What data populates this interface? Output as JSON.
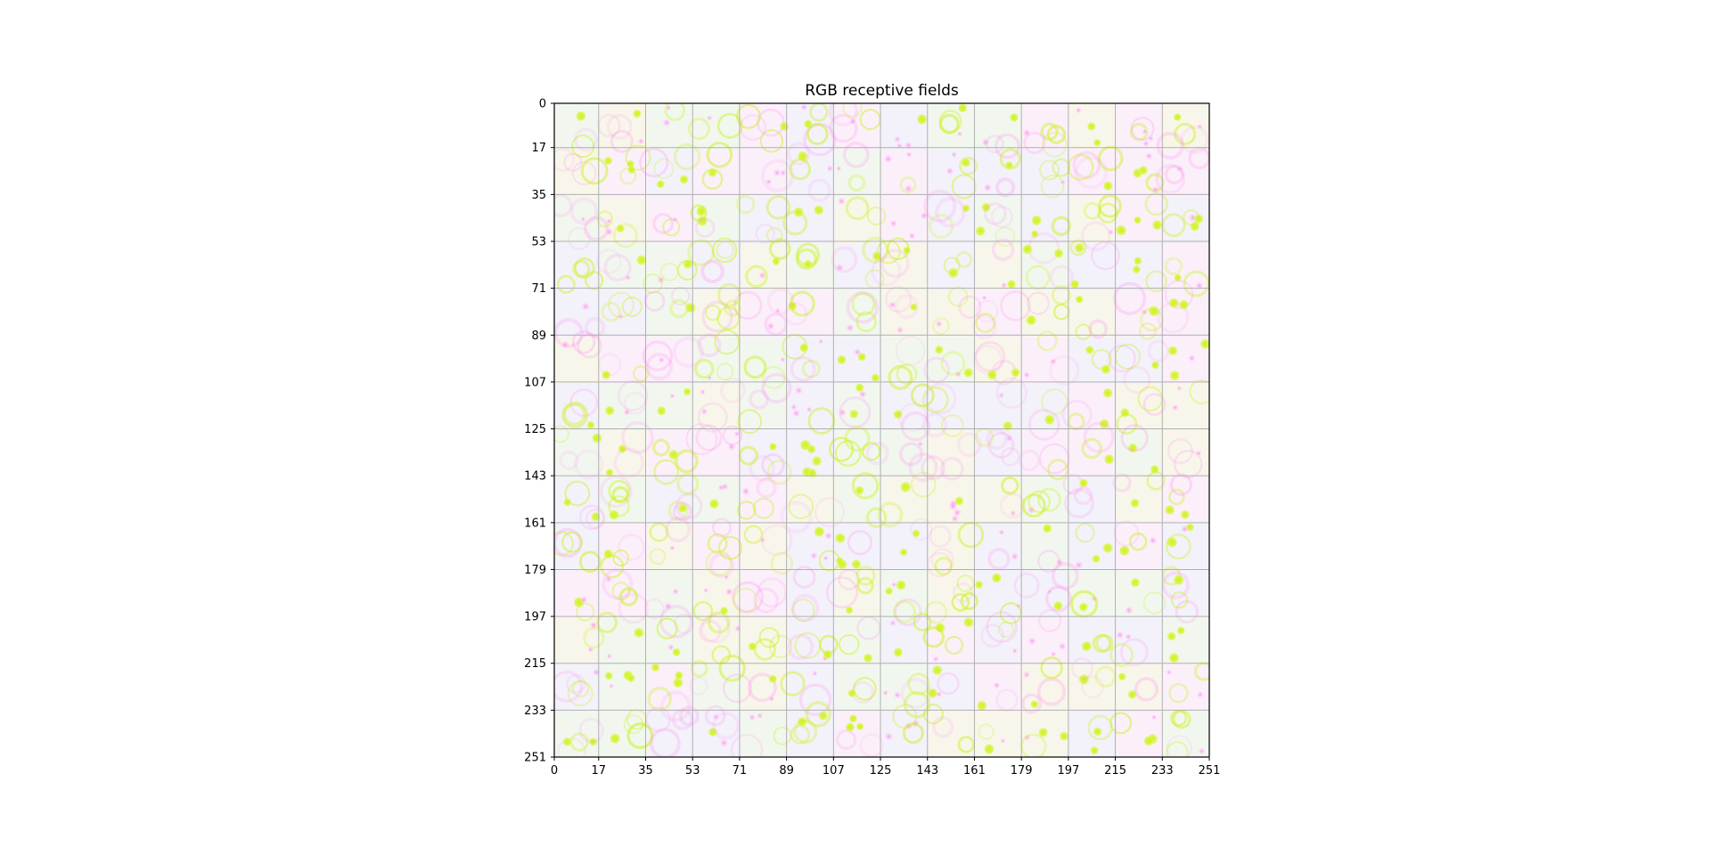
{
  "chart_data": {
    "type": "heatmap",
    "title": "RGB receptive fields",
    "xlabel": "",
    "ylabel": "",
    "xlim": [
      0,
      251
    ],
    "ylim": [
      251,
      0
    ],
    "grid": true,
    "x_ticks": [
      0,
      17,
      35,
      53,
      71,
      89,
      107,
      125,
      143,
      161,
      179,
      197,
      215,
      233,
      251
    ],
    "y_ticks": [
      0,
      17,
      35,
      53,
      71,
      89,
      107,
      125,
      143,
      161,
      179,
      197,
      215,
      233,
      251
    ],
    "tile_grid": {
      "rows": 14,
      "cols": 14
    },
    "colors": {
      "tint_lavender": "#f3f1fa",
      "tint_pink": "#fbeffa",
      "tint_mint": "#f1f7ef",
      "tint_cream": "#f8f6ea",
      "spot_green": "#ccf21f",
      "spot_magenta": "#ff8ef0",
      "grid": "#b0b0b0",
      "frame": "#000000"
    }
  }
}
